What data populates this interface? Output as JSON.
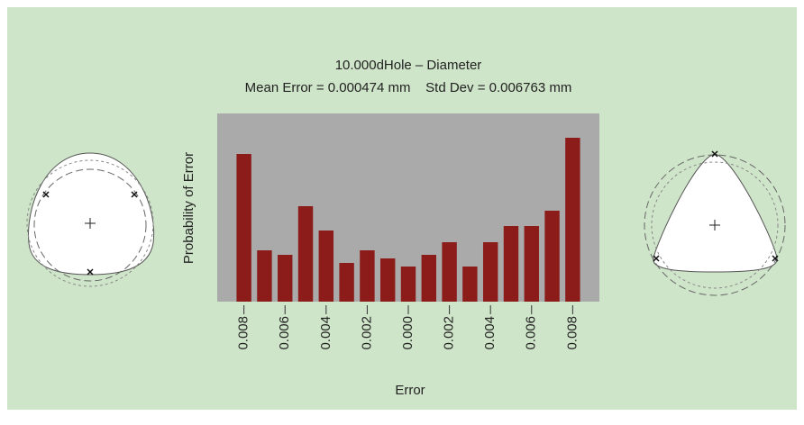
{
  "chart_data": {
    "type": "histogram",
    "title": "10.000dHole – Diameter",
    "subtitle": "Mean Error = 0.000474 mm    Std Dev = 0.006763 mm",
    "xlabel": "Error",
    "ylabel": "Probability of Error",
    "bins": [
      -0.0085,
      -0.0075,
      -0.0065,
      -0.0055,
      -0.0045,
      -0.0035,
      -0.0025,
      -0.0015,
      -0.0005,
      0.0005,
      0.0015,
      0.0025,
      0.0035,
      0.0045,
      0.0055,
      0.0065,
      0.0075,
      0.0085
    ],
    "values": [
      164,
      57,
      52,
      106,
      79,
      43,
      57,
      48,
      39,
      52,
      66,
      39,
      66,
      84,
      84,
      101,
      182
    ],
    "color": "#8b1c1a",
    "background": "#aaaaaa",
    "xlim": [
      -0.0093,
      0.0093
    ],
    "ylim": [
      0,
      209
    ],
    "xticks": [
      {
        "value": -0.008,
        "label": "0.008"
      },
      {
        "value": -0.006,
        "label": "0.006"
      },
      {
        "value": -0.004,
        "label": "0.004"
      },
      {
        "value": -0.002,
        "label": "0.002"
      },
      {
        "value": 0,
        "label": "0.000"
      },
      {
        "value": 0.002,
        "label": "0.002"
      },
      {
        "value": 0.004,
        "label": "0.004"
      },
      {
        "value": 0.006,
        "label": "0.006"
      },
      {
        "value": 0.008,
        "label": "0.008"
      }
    ]
  }
}
